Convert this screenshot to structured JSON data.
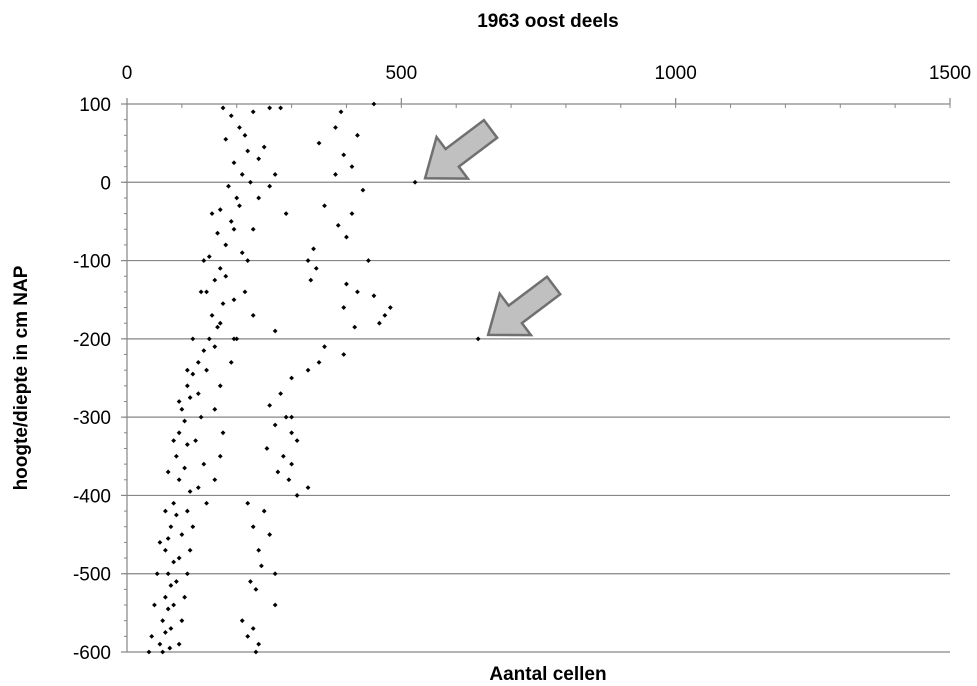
{
  "chart_data": {
    "type": "scatter",
    "title": "1963 oost deels",
    "xlabel": "Aantal cellen",
    "ylabel": "hoogte/diepte in cm NAP",
    "xlim": [
      0,
      1500
    ],
    "ylim": [
      -600,
      100
    ],
    "x_axis_position": "top",
    "x_ticks": [
      0,
      500,
      1000,
      1500
    ],
    "y_ticks": [
      100,
      0,
      -100,
      -200,
      -300,
      -400,
      -500,
      -600
    ],
    "grid": "horizontal",
    "legend": "none",
    "marker": "diamond",
    "marker_color": "#000000",
    "gridline_color": "#868686",
    "series": [
      {
        "points": [
          [
            175,
            95
          ],
          [
            190,
            85
          ],
          [
            205,
            70
          ],
          [
            180,
            55
          ],
          [
            220,
            40
          ],
          [
            195,
            25
          ],
          [
            210,
            10
          ],
          [
            185,
            -5
          ],
          [
            200,
            -20
          ],
          [
            170,
            -35
          ],
          [
            190,
            -50
          ],
          [
            165,
            -65
          ],
          [
            180,
            -80
          ],
          [
            150,
            -95
          ],
          [
            170,
            -110
          ],
          [
            160,
            -125
          ],
          [
            145,
            -140
          ],
          [
            175,
            -155
          ],
          [
            155,
            -170
          ],
          [
            165,
            -185
          ],
          [
            150,
            -200
          ],
          [
            140,
            -215
          ],
          [
            130,
            -230
          ],
          [
            120,
            -245
          ],
          [
            110,
            -260
          ],
          [
            115,
            -275
          ],
          [
            100,
            -290
          ],
          [
            105,
            -305
          ],
          [
            95,
            -320
          ],
          [
            110,
            -335
          ],
          [
            90,
            -350
          ],
          [
            105,
            -365
          ],
          [
            95,
            -380
          ],
          [
            115,
            -395
          ],
          [
            85,
            -410
          ],
          [
            90,
            -425
          ],
          [
            80,
            -440
          ],
          [
            75,
            -455
          ],
          [
            70,
            -470
          ],
          [
            85,
            -485
          ],
          [
            75,
            -500
          ],
          [
            80,
            -515
          ],
          [
            70,
            -530
          ],
          [
            75,
            -545
          ],
          [
            65,
            -560
          ],
          [
            70,
            -575
          ],
          [
            60,
            -590
          ],
          [
            65,
            -600
          ],
          [
            230,
            90
          ],
          [
            215,
            60
          ],
          [
            240,
            30
          ],
          [
            225,
            0
          ],
          [
            205,
            -30
          ],
          [
            195,
            -60
          ],
          [
            210,
            -90
          ],
          [
            180,
            -120
          ],
          [
            195,
            -150
          ],
          [
            170,
            -180
          ],
          [
            160,
            -210
          ],
          [
            145,
            -240
          ],
          [
            130,
            -270
          ],
          [
            135,
            -300
          ],
          [
            125,
            -330
          ],
          [
            140,
            -360
          ],
          [
            130,
            -390
          ],
          [
            110,
            -420
          ],
          [
            100,
            -450
          ],
          [
            95,
            -480
          ],
          [
            90,
            -510
          ],
          [
            85,
            -540
          ],
          [
            80,
            -570
          ],
          [
            78,
            -595
          ],
          [
            260,
            95
          ],
          [
            250,
            45
          ],
          [
            270,
            10
          ],
          [
            240,
            -20
          ],
          [
            230,
            -60
          ],
          [
            220,
            -100
          ],
          [
            215,
            -140
          ],
          [
            230,
            -170
          ],
          [
            200,
            -200
          ],
          [
            190,
            -230
          ],
          [
            170,
            -260
          ],
          [
            160,
            -290
          ],
          [
            175,
            -320
          ],
          [
            170,
            -350
          ],
          [
            160,
            -380
          ],
          [
            145,
            -410
          ],
          [
            120,
            -440
          ],
          [
            115,
            -470
          ],
          [
            110,
            -500
          ],
          [
            105,
            -530
          ],
          [
            100,
            -560
          ],
          [
            95,
            -590
          ],
          [
            155,
            -40
          ],
          [
            140,
            -100
          ],
          [
            135,
            -140
          ],
          [
            120,
            -200
          ],
          [
            110,
            -240
          ],
          [
            95,
            -280
          ],
          [
            85,
            -330
          ],
          [
            75,
            -370
          ],
          [
            70,
            -420
          ],
          [
            60,
            -460
          ],
          [
            55,
            -500
          ],
          [
            50,
            -540
          ],
          [
            45,
            -580
          ],
          [
            40,
            -600
          ],
          [
            280,
            95
          ],
          [
            260,
            -5
          ],
          [
            270,
            -190
          ],
          [
            195,
            -200
          ],
          [
            290,
            -40
          ],
          [
            295,
            -380
          ],
          [
            300,
            -300
          ],
          [
            390,
            90
          ],
          [
            380,
            70
          ],
          [
            420,
            60
          ],
          [
            350,
            50
          ],
          [
            395,
            35
          ],
          [
            410,
            20
          ],
          [
            380,
            10
          ],
          [
            430,
            -10
          ],
          [
            410,
            -40
          ],
          [
            360,
            -30
          ],
          [
            385,
            -55
          ],
          [
            400,
            -70
          ],
          [
            340,
            -85
          ],
          [
            330,
            -100
          ],
          [
            440,
            -100
          ],
          [
            345,
            -110
          ],
          [
            335,
            -125
          ],
          [
            400,
            -130
          ],
          [
            420,
            -140
          ],
          [
            450,
            -145
          ],
          [
            480,
            -160
          ],
          [
            470,
            -170
          ],
          [
            395,
            -160
          ],
          [
            460,
            -180
          ],
          [
            415,
            -185
          ],
          [
            360,
            -210
          ],
          [
            395,
            -220
          ],
          [
            350,
            -230
          ],
          [
            330,
            -240
          ],
          [
            300,
            -250
          ],
          [
            280,
            -270
          ],
          [
            260,
            -285
          ],
          [
            290,
            -300
          ],
          [
            270,
            -310
          ],
          [
            300,
            -320
          ],
          [
            310,
            -330
          ],
          [
            255,
            -340
          ],
          [
            285,
            -350
          ],
          [
            300,
            -360
          ],
          [
            275,
            -370
          ],
          [
            330,
            -390
          ],
          [
            310,
            -400
          ],
          [
            220,
            -410
          ],
          [
            250,
            -420
          ],
          [
            230,
            -440
          ],
          [
            260,
            -450
          ],
          [
            240,
            -470
          ],
          [
            245,
            -490
          ],
          [
            270,
            -500
          ],
          [
            225,
            -510
          ],
          [
            235,
            -520
          ],
          [
            270,
            -540
          ],
          [
            210,
            -560
          ],
          [
            230,
            -570
          ],
          [
            220,
            -580
          ],
          [
            240,
            -590
          ],
          [
            235,
            -600
          ],
          [
            450,
            100
          ],
          [
            525,
            0
          ],
          [
            640,
            -200
          ]
        ]
      }
    ],
    "annotations": [
      {
        "type": "arrow",
        "x": 525,
        "y": 0,
        "color": "#c0c0c0",
        "direction": "lower-left"
      },
      {
        "type": "arrow",
        "x": 640,
        "y": -200,
        "color": "#c0c0c0",
        "direction": "lower-left"
      }
    ]
  }
}
